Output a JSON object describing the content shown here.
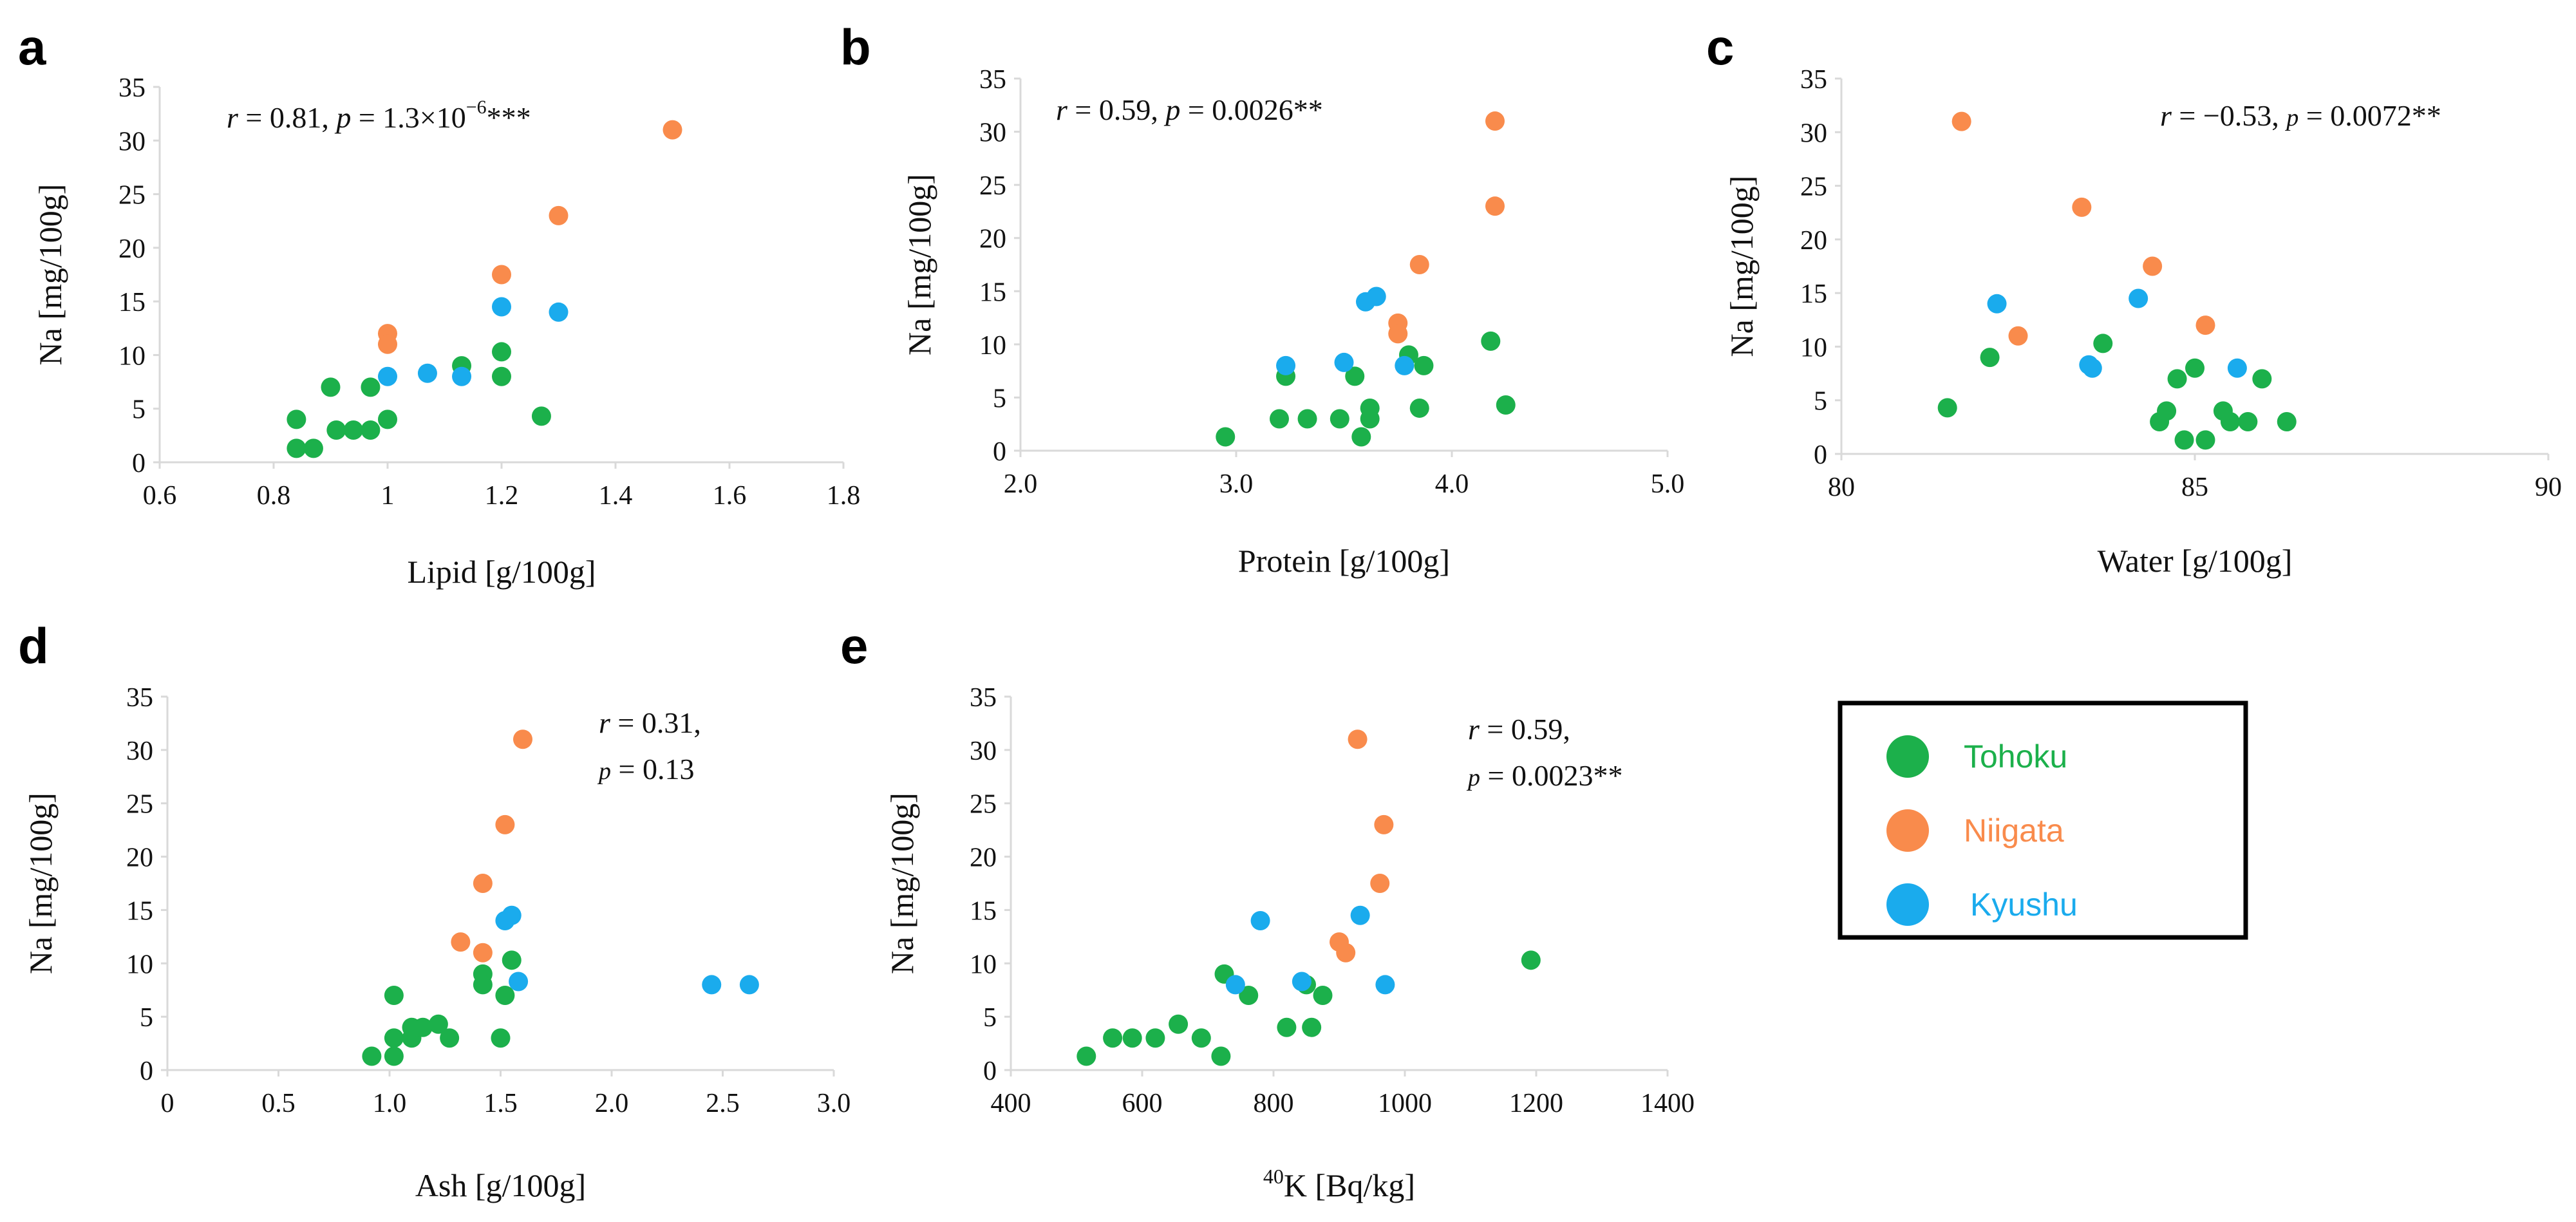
{
  "colors": {
    "Tohoku": "#1cb04b",
    "Niigata": "#f98b4c",
    "Kyushu": "#1aabed",
    "axis": "#d9d9d9",
    "text": "#111111"
  },
  "legend": {
    "items": [
      {
        "label": "Tohoku",
        "color": "#1cb04b"
      },
      {
        "label": "Niigata",
        "color": "#f98b4c"
      },
      {
        "label": "Kyushu",
        "color": "#1aabed"
      }
    ]
  },
  "chart_data": [
    {
      "panel": "a",
      "type": "scatter",
      "xlabel": "Lipid [g/100g]",
      "ylabel": "Na [mg/100g]",
      "xlim": [
        0.6,
        1.8
      ],
      "ylim": [
        0,
        35
      ],
      "xticks": [
        0.6,
        0.8,
        1.0,
        1.2,
        1.4,
        1.6,
        1.8
      ],
      "xtick_labels": [
        "0.6",
        "0.8",
        "1",
        "1.2",
        "1.4",
        "1.6",
        "1.8"
      ],
      "yticks": [
        0,
        5,
        10,
        15,
        20,
        25,
        30,
        35
      ],
      "ytick_labels": [
        "0",
        "5",
        "10",
        "15",
        "20",
        "25",
        "30",
        "35"
      ],
      "stats": {
        "r": "0.81",
        "p": "1.3",
        "p_exp": "−6",
        "stars": "***",
        "layout": "one-line"
      },
      "series": [
        {
          "name": "Tohoku",
          "points": [
            [
              0.84,
              4.0
            ],
            [
              0.84,
              1.3
            ],
            [
              0.87,
              1.3
            ],
            [
              0.9,
              7.0
            ],
            [
              0.91,
              3.0
            ],
            [
              0.94,
              3.0
            ],
            [
              0.97,
              3.0
            ],
            [
              0.97,
              7.0
            ],
            [
              1.0,
              4.0
            ],
            [
              1.13,
              9.0
            ],
            [
              1.2,
              10.3
            ],
            [
              1.2,
              8.0
            ],
            [
              1.27,
              4.3
            ]
          ]
        },
        {
          "name": "Niigata",
          "points": [
            [
              1.0,
              12.0
            ],
            [
              1.0,
              11.0
            ],
            [
              1.2,
              17.5
            ],
            [
              1.3,
              23.0
            ],
            [
              1.5,
              31.0
            ]
          ]
        },
        {
          "name": "Kyushu",
          "points": [
            [
              1.0,
              8.0
            ],
            [
              1.07,
              8.3
            ],
            [
              1.13,
              8.0
            ],
            [
              1.2,
              14.5
            ],
            [
              1.3,
              14.0
            ]
          ]
        }
      ]
    },
    {
      "panel": "b",
      "type": "scatter",
      "xlabel": "Protein [g/100g]",
      "ylabel": "Na [mg/100g]",
      "xlim": [
        2.0,
        5.0
      ],
      "ylim": [
        0,
        35
      ],
      "xticks": [
        2.0,
        3.0,
        4.0,
        5.0
      ],
      "xtick_labels": [
        "2.0",
        "3.0",
        "4.0",
        "5.0"
      ],
      "yticks": [
        0,
        5,
        10,
        15,
        20,
        25,
        30,
        35
      ],
      "ytick_labels": [
        "0",
        "5",
        "10",
        "15",
        "20",
        "25",
        "30",
        "35"
      ],
      "stats": {
        "r": "0.59",
        "p": "0.0026",
        "stars": "**",
        "layout": "one-line"
      },
      "series": [
        {
          "name": "Tohoku",
          "points": [
            [
              2.95,
              1.3
            ],
            [
              3.2,
              3.0
            ],
            [
              3.23,
              7.0
            ],
            [
              3.33,
              3.0
            ],
            [
              3.48,
              3.0
            ],
            [
              3.55,
              7.0
            ],
            [
              3.58,
              1.3
            ],
            [
              3.62,
              3.0
            ],
            [
              3.62,
              4.0
            ],
            [
              3.8,
              9.0
            ],
            [
              3.85,
              4.0
            ],
            [
              3.87,
              8.0
            ],
            [
              4.18,
              10.3
            ],
            [
              4.25,
              4.3
            ]
          ]
        },
        {
          "name": "Niigata",
          "points": [
            [
              3.75,
              12.0
            ],
            [
              3.75,
              11.0
            ],
            [
              3.85,
              17.5
            ],
            [
              4.2,
              23.0
            ],
            [
              4.2,
              31.0
            ]
          ]
        },
        {
          "name": "Kyushu",
          "points": [
            [
              3.23,
              8.0
            ],
            [
              3.5,
              8.3
            ],
            [
              3.6,
              14.0
            ],
            [
              3.65,
              14.5
            ],
            [
              3.78,
              8.0
            ]
          ]
        }
      ]
    },
    {
      "panel": "c",
      "type": "scatter",
      "xlabel": "Water [g/100g]",
      "ylabel": "Na [mg/100g]",
      "xlim": [
        80,
        90
      ],
      "ylim": [
        0,
        35
      ],
      "xticks": [
        80,
        85,
        90
      ],
      "xtick_labels": [
        "80",
        "85",
        "90"
      ],
      "yticks": [
        0,
        5,
        10,
        15,
        20,
        25,
        30,
        35
      ],
      "ytick_labels": [
        "0",
        "5",
        "10",
        "15",
        "20",
        "25",
        "30",
        "35"
      ],
      "stats": {
        "r": "−0.53",
        "p": "0.0072",
        "stars": "**",
        "layout": "one-line"
      },
      "series": [
        {
          "name": "Tohoku",
          "points": [
            [
              81.5,
              4.3
            ],
            [
              82.1,
              9.0
            ],
            [
              83.7,
              10.3
            ],
            [
              84.5,
              3.0
            ],
            [
              84.6,
              4.0
            ],
            [
              84.75,
              7.0
            ],
            [
              84.85,
              1.3
            ],
            [
              85.0,
              8.0
            ],
            [
              85.15,
              1.3
            ],
            [
              85.4,
              4.0
            ],
            [
              85.5,
              3.0
            ],
            [
              85.75,
              3.0
            ],
            [
              85.95,
              7.0
            ],
            [
              86.3,
              3.0
            ]
          ]
        },
        {
          "name": "Niigata",
          "points": [
            [
              81.7,
              31.0
            ],
            [
              82.5,
              11.0
            ],
            [
              83.4,
              23.0
            ],
            [
              84.4,
              17.5
            ],
            [
              85.15,
              12.0
            ]
          ]
        },
        {
          "name": "Kyushu",
          "points": [
            [
              82.2,
              14.0
            ],
            [
              83.5,
              8.3
            ],
            [
              83.55,
              8.0
            ],
            [
              84.2,
              14.5
            ],
            [
              85.6,
              8.0
            ]
          ]
        }
      ]
    },
    {
      "panel": "d",
      "type": "scatter",
      "xlabel": "Ash [g/100g]",
      "ylabel": "Na [mg/100g]",
      "xlim": [
        0,
        3.0
      ],
      "ylim": [
        0,
        35
      ],
      "xticks": [
        0,
        0.5,
        1.0,
        1.5,
        2.0,
        2.5,
        3.0
      ],
      "xtick_labels": [
        "0",
        "0.5",
        "1.0",
        "1.5",
        "2.0",
        "2.5",
        "3.0"
      ],
      "yticks": [
        0,
        5,
        10,
        15,
        20,
        25,
        30,
        35
      ],
      "ytick_labels": [
        "0",
        "5",
        "10",
        "15",
        "20",
        "25",
        "30",
        "35"
      ],
      "stats": {
        "r": "0.31",
        "p": "0.13",
        "stars": "",
        "layout": "two-line"
      },
      "series": [
        {
          "name": "Tohoku",
          "points": [
            [
              0.92,
              1.3
            ],
            [
              1.02,
              1.3
            ],
            [
              1.02,
              3.0
            ],
            [
              1.02,
              7.0
            ],
            [
              1.1,
              3.0
            ],
            [
              1.1,
              4.0
            ],
            [
              1.15,
              4.0
            ],
            [
              1.22,
              4.3
            ],
            [
              1.27,
              3.0
            ],
            [
              1.42,
              9.0
            ],
            [
              1.42,
              8.0
            ],
            [
              1.5,
              3.0
            ],
            [
              1.52,
              7.0
            ],
            [
              1.55,
              10.3
            ]
          ]
        },
        {
          "name": "Niigata",
          "points": [
            [
              1.32,
              12.0
            ],
            [
              1.42,
              11.0
            ],
            [
              1.42,
              17.5
            ],
            [
              1.52,
              23.0
            ],
            [
              1.6,
              31.0
            ]
          ]
        },
        {
          "name": "Kyushu",
          "points": [
            [
              1.52,
              14.0
            ],
            [
              1.55,
              14.5
            ],
            [
              1.58,
              8.3
            ],
            [
              2.45,
              8.0
            ],
            [
              2.62,
              8.0
            ]
          ]
        }
      ]
    },
    {
      "panel": "e",
      "type": "scatter",
      "xlabel": "K [Bq/kg]",
      "xlabel_superscript": "40",
      "ylabel": "Na [mg/100g]",
      "xlim": [
        400,
        1400
      ],
      "ylim": [
        0,
        35
      ],
      "xticks": [
        400,
        600,
        800,
        1000,
        1200,
        1400
      ],
      "xtick_labels": [
        "400",
        "600",
        "800",
        "1000",
        "1200",
        "1400"
      ],
      "yticks": [
        0,
        5,
        10,
        15,
        20,
        25,
        30,
        35
      ],
      "ytick_labels": [
        "0",
        "5",
        "10",
        "15",
        "20",
        "25",
        "30",
        "35"
      ],
      "stats": {
        "r": "0.59",
        "p": "0.0023",
        "stars": "**",
        "layout": "two-line"
      },
      "series": [
        {
          "name": "Tohoku",
          "points": [
            [
              515,
              1.3
            ],
            [
              555,
              3.0
            ],
            [
              585,
              3.0
            ],
            [
              620,
              3.0
            ],
            [
              655,
              4.3
            ],
            [
              690,
              3.0
            ],
            [
              720,
              1.3
            ],
            [
              725,
              9.0
            ],
            [
              762,
              7.0
            ],
            [
              820,
              4.0
            ],
            [
              850,
              8.0
            ],
            [
              858,
              4.0
            ],
            [
              875,
              7.0
            ],
            [
              1192,
              10.3
            ]
          ]
        },
        {
          "name": "Niigata",
          "points": [
            [
              900,
              12.0
            ],
            [
              910,
              11.0
            ],
            [
              928,
              31.0
            ],
            [
              962,
              17.5
            ],
            [
              968,
              23.0
            ]
          ]
        },
        {
          "name": "Kyushu",
          "points": [
            [
              742,
              8.0
            ],
            [
              780,
              14.0
            ],
            [
              843,
              8.3
            ],
            [
              932,
              14.5
            ],
            [
              970,
              8.0
            ]
          ]
        }
      ]
    }
  ],
  "panel_positions_note": ""
}
